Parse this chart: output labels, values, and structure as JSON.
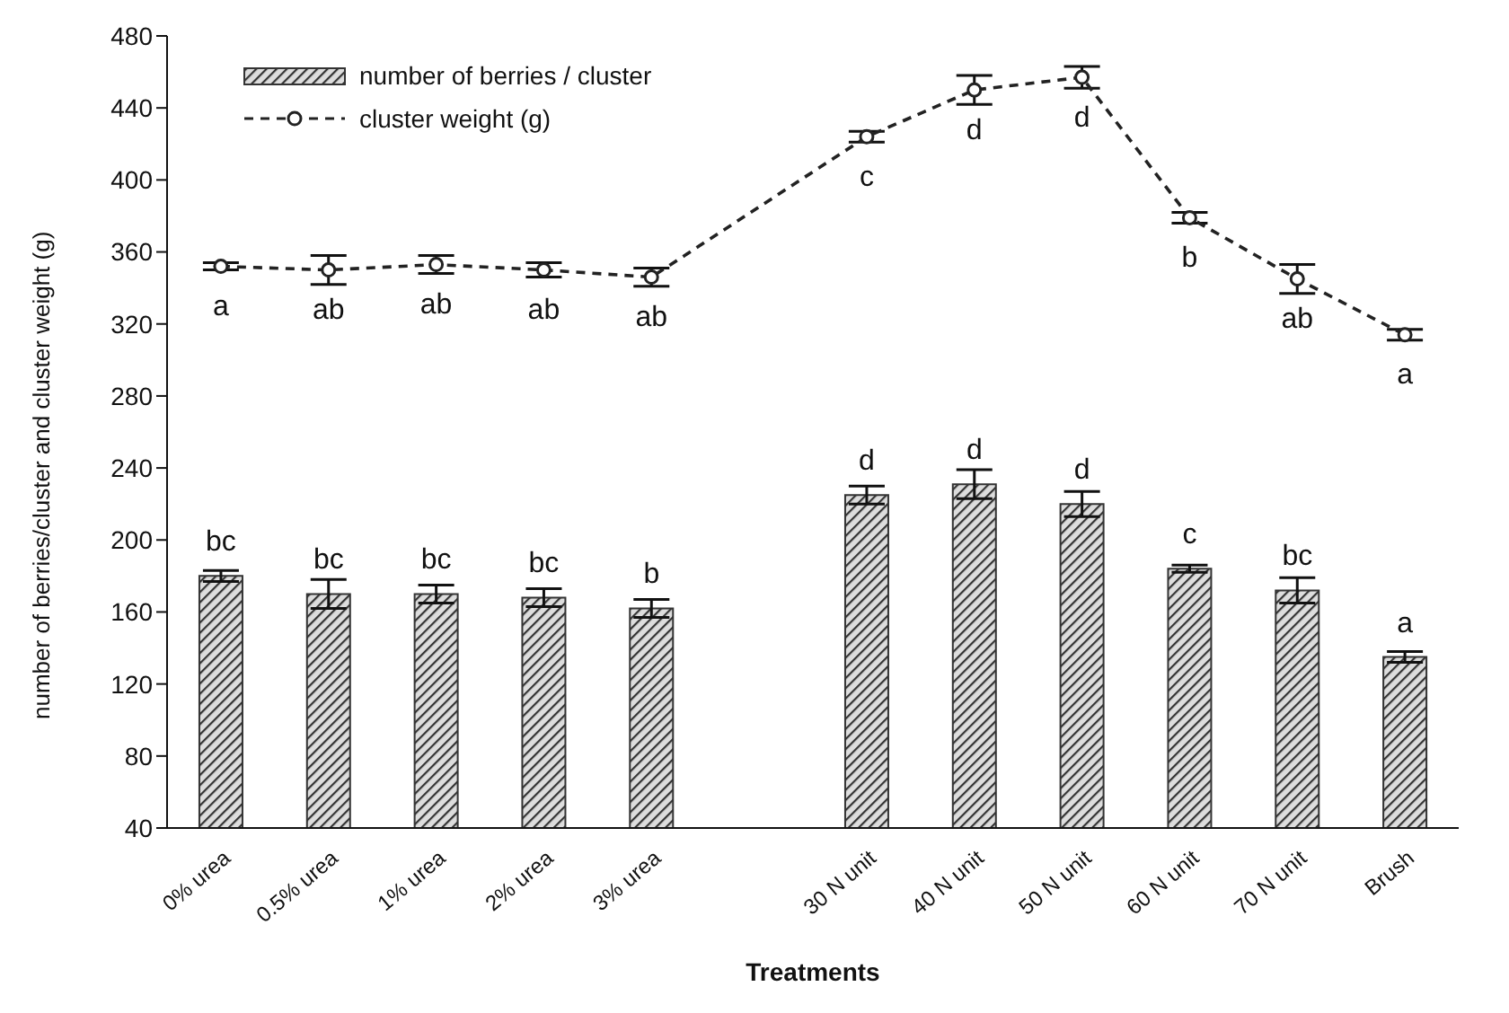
{
  "chart_data": {
    "type": "bar",
    "xlabel": "Treatments",
    "ylabel": "number of berries/cluster and cluster weight (g)",
    "categories": [
      "0% urea",
      "0.5% urea",
      "1% urea",
      "2% urea",
      "3% urea",
      null,
      "30 N unit",
      "40 N unit",
      "50 N unit",
      "60 N unit",
      "70 N unit",
      "Brush"
    ],
    "series": [
      {
        "name": "number of berries / cluster",
        "color": "#333333",
        "values": [
          180,
          170,
          170,
          168,
          162,
          null,
          225,
          231,
          220,
          184,
          172,
          135
        ],
        "errors": [
          3,
          8,
          5,
          5,
          5,
          null,
          5,
          8,
          7,
          2,
          7,
          3
        ],
        "value_labels": [
          "bc",
          "bc",
          "bc",
          "bc",
          "b",
          null,
          "d",
          "d",
          "d",
          "c",
          "bc",
          "a"
        ]
      },
      {
        "name": "cluster weight (g)",
        "type": "line",
        "color": "#222222",
        "marker": "circle",
        "line_style": "dashed",
        "values": [
          352,
          350,
          353,
          350,
          346,
          null,
          424,
          450,
          457,
          379,
          345,
          314
        ],
        "errors": [
          2,
          8,
          5,
          4,
          5,
          null,
          3,
          8,
          6,
          3,
          8,
          3
        ],
        "value_labels": [
          "a",
          "ab",
          "ab",
          "ab",
          "ab",
          null,
          "c",
          "d",
          "d",
          "b",
          "ab",
          "a"
        ]
      }
    ],
    "ylim": [
      40,
      480
    ],
    "yticks": [
      40,
      80,
      120,
      160,
      200,
      240,
      280,
      320,
      360,
      400,
      440,
      480
    ],
    "legend": "top left"
  }
}
